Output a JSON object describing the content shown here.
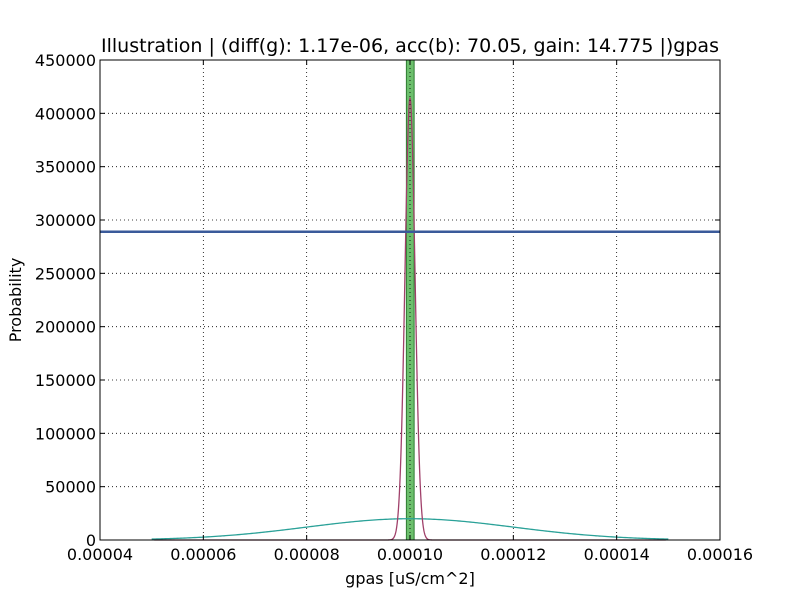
{
  "chart_data": {
    "type": "line",
    "title": "Illustration |  (diff(g): 1.17e-06, acc(b): 70.05, gain: 14.775 |)gpas",
    "xlabel": "gpas [uS/cm^2]",
    "ylabel": "Probability",
    "xlim": [
      4e-05,
      0.00016
    ],
    "ylim": [
      0,
      450000
    ],
    "xticks": [
      "0.00004",
      "0.00006",
      "0.00008",
      "0.00010",
      "0.00012",
      "0.00014",
      "0.00016"
    ],
    "yticks": [
      "0",
      "50000",
      "100000",
      "150000",
      "200000",
      "250000",
      "300000",
      "350000",
      "400000",
      "450000"
    ],
    "grid": true,
    "legend": "none",
    "prior": {
      "mean": 0.0001,
      "std": 2e-05,
      "xmin": 5e-05,
      "xmax": 0.00015,
      "color": "#2aa198"
    },
    "posterior": {
      "mean": 0.0001,
      "std": 9.7e-07,
      "peak": 414000,
      "color": "#a0406a"
    },
    "interval": {
      "x0": 9.93e-05,
      "x1": 0.0001008,
      "color": "#5cb85c"
    },
    "true_value": {
      "x": 0.0001
    },
    "hline": {
      "y": 289000,
      "color": "#3a5a9a"
    }
  }
}
